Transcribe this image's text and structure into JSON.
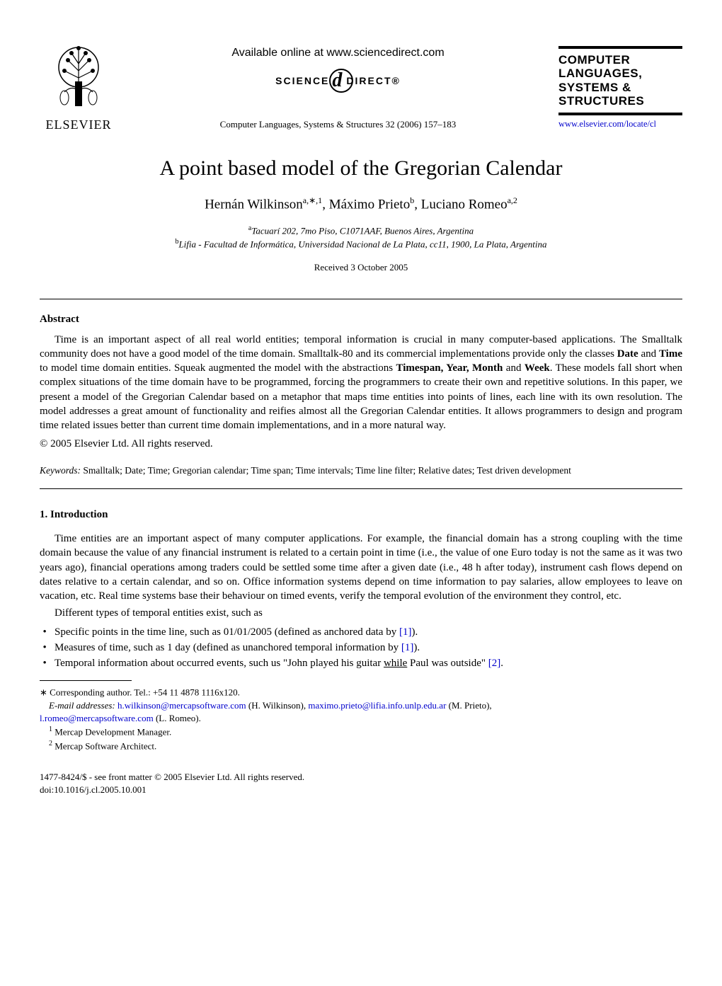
{
  "header": {
    "publisher_name": "ELSEVIER",
    "available_online": "Available online at www.sciencedirect.com",
    "sd_left": "SCIENCE",
    "sd_right": "DIRECT®",
    "citation": "Computer Languages, Systems & Structures 32 (2006) 157–183",
    "journal_box": {
      "line1": "COMPUTER",
      "line2": "LANGUAGES,",
      "line3": "SYSTEMS &",
      "line4": "STRUCTURES"
    },
    "journal_url": "www.elsevier.com/locate/cl"
  },
  "title": "A point based model of the Gregorian Calendar",
  "authors_html": "Hernán Wilkinson<sup>a,∗,1</sup>, Máximo Prieto<sup>b</sup>, Luciano Romeo<sup>a,2</sup>",
  "affiliations": {
    "a": "Tacuarí 202, 7mo Piso, C1071AAF, Buenos Aires, Argentina",
    "b": "Lifia - Facultad de Informática, Universidad Nacional de La Plata, cc11, 1900, La Plata, Argentina"
  },
  "received": "Received 3 October 2005",
  "abstract": {
    "heading": "Abstract",
    "body_html": "Time is an important aspect of all real world entities; temporal information is crucial in many computer-based applications. The Smalltalk community does not have a good model of the time domain. Smalltalk-80 and its commercial implementations provide only the classes <span class=\"bold\">Date</span> and <span class=\"bold\">Time</span> to model time domain entities. Squeak augmented the model with the abstractions <span class=\"bold\">Timespan, Year, Month</span> and <span class=\"bold\">Week</span>. These models fall short when complex situations of the time domain have to be programmed, forcing the programmers to create their own and repetitive solutions. In this paper, we present a model of the Gregorian Calendar based on a metaphor that maps time entities into points of lines, each line with its own resolution. The model addresses a great amount of functionality and reifies almost all the Gregorian Calendar entities. It allows programmers to design and program time related issues better than current time domain implementations, and in a more natural way.",
    "copyright": "© 2005 Elsevier Ltd. All rights reserved."
  },
  "keywords": {
    "label": "Keywords:",
    "text": " Smalltalk; Date; Time; Gregorian calendar; Time span; Time intervals; Time line filter; Relative dates; Test driven development"
  },
  "section1": {
    "heading": "1.  Introduction",
    "p1": "Time entities are an important aspect of many computer applications. For example, the financial domain has a strong coupling with the time domain because the value of any financial instrument is related to a certain point in time (i.e., the value of one Euro today is not the same as it was two years ago), financial operations among traders could be settled some time after a given date (i.e., 48 h after today), instrument cash flows depend on dates relative to a certain calendar, and so on. Office information systems depend on time information to pay salaries, allow employees to leave on vacation, etc. Real time systems base their behaviour on timed events, verify the temporal evolution of the environment they control, etc.",
    "p2": "Different types of temporal entities exist, such as",
    "bullets": [
      {
        "text_html": "Specific points in the time line, such as 01/01/2005 (defined as anchored data by <span class=\"ref-link\">[1]</span>)."
      },
      {
        "text_html": "Measures of time, such as 1 day (defined as unanchored temporal information by <span class=\"ref-link\">[1]</span>)."
      },
      {
        "text_html": "Temporal information about occurred events, such us \"John played his guitar <span class=\"underline\">while</span> Paul was outside\" <span class=\"ref-link\">[2]</span>."
      }
    ]
  },
  "footnotes": {
    "corr": "∗ Corresponding author. Tel.: +54 11 4878 1116x120.",
    "emails_label": "E-mail addresses:",
    "email1": "h.wilkinson@mercapsoftware.com",
    "name1": " (H. Wilkinson), ",
    "email2": "maximo.prieto@lifia.info.unlp.edu.ar",
    "name2": " (M. Prieto),",
    "email3": "l.romeo@mercapsoftware.com",
    "name3": " (L. Romeo).",
    "fn1": " Mercap Development Manager.",
    "fn2": " Mercap Software Architect."
  },
  "footer": {
    "line1": "1477-8424/$ - see front matter © 2005 Elsevier Ltd. All rights reserved.",
    "line2": "doi:10.1016/j.cl.2005.10.001"
  }
}
